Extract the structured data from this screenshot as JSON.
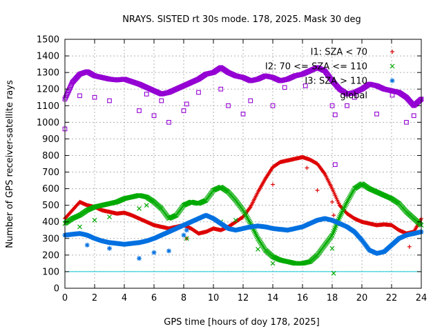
{
  "chart_data": {
    "type": "scatter",
    "title": "NRAYS. SISTED rt 30s mode. 178, 2025. Mask 30 deg",
    "xlabel": "GPS time [hours of doy 178, 2025]",
    "ylabel": "Number of GPS receiver-satellite rays",
    "xlim": [
      0,
      24
    ],
    "ylim": [
      0,
      1500
    ],
    "xticks": [
      "0",
      "2",
      "4",
      "6",
      "8",
      "10",
      "12",
      "14",
      "16",
      "18",
      "20",
      "22",
      "24"
    ],
    "yticks": [
      "0",
      "100",
      "200",
      "300",
      "400",
      "500",
      "600",
      "700",
      "800",
      "900",
      "1000",
      "1100",
      "1200",
      "1300",
      "1400",
      "1500"
    ],
    "grid": true,
    "legend_position": "top-right",
    "threshold_line": {
      "y": 100,
      "color": "#00c8d0"
    },
    "series": [
      {
        "name": "I1: SZA < 70",
        "color": "#dd0000",
        "marker": "+",
        "x": [
          0,
          0.5,
          1,
          1.5,
          2,
          2.5,
          3,
          3.5,
          4,
          4.5,
          5,
          5.5,
          6,
          6.5,
          7,
          7.5,
          8,
          8.5,
          9,
          9.5,
          10,
          10.5,
          11,
          11.5,
          12,
          12.5,
          13,
          13.5,
          14,
          14.5,
          15,
          15.5,
          16,
          16.5,
          17,
          17.5,
          18,
          18.5,
          19,
          19.5,
          20,
          20.5,
          21,
          21.5,
          22,
          22.5,
          23,
          23.5,
          24
        ],
        "y": [
          420,
          470,
          520,
          500,
          490,
          470,
          460,
          450,
          455,
          440,
          420,
          400,
          380,
          370,
          360,
          370,
          380,
          360,
          330,
          340,
          360,
          350,
          370,
          400,
          430,
          490,
          580,
          660,
          730,
          760,
          770,
          780,
          790,
          775,
          750,
          690,
          600,
          500,
          450,
          420,
          400,
          390,
          380,
          385,
          380,
          350,
          330,
          340,
          420
        ],
        "outliers_x": [
          8.2,
          14,
          16.3,
          17,
          18,
          18.1,
          23.2
        ],
        "outliers_y": [
          300,
          625,
          725,
          590,
          520,
          440,
          250
        ]
      },
      {
        "name": "I2: 70 <= SZA <= 110",
        "color": "#00aa00",
        "marker": "x",
        "x": [
          0,
          0.5,
          1,
          1.5,
          2,
          2.5,
          3,
          3.5,
          4,
          4.5,
          5,
          5.5,
          6,
          6.5,
          7,
          7.5,
          8,
          8.5,
          9,
          9.5,
          10,
          10.5,
          11,
          11.5,
          12,
          12.5,
          13,
          13.5,
          14,
          14.5,
          15,
          15.5,
          16,
          16.5,
          17,
          17.5,
          18,
          18.5,
          19,
          19.5,
          20,
          20.5,
          21,
          21.5,
          22,
          22.5,
          23,
          23.5,
          24
        ],
        "y": [
          390,
          420,
          440,
          470,
          490,
          500,
          510,
          520,
          540,
          550,
          560,
          550,
          520,
          480,
          420,
          440,
          500,
          520,
          510,
          530,
          590,
          610,
          580,
          530,
          470,
          390,
          300,
          230,
          190,
          170,
          160,
          150,
          150,
          160,
          200,
          260,
          320,
          430,
          520,
          600,
          630,
          600,
          580,
          560,
          540,
          510,
          460,
          420,
          380
        ],
        "outliers_x": [
          1,
          2,
          3,
          5,
          5.5,
          8.2,
          10.5,
          11.5,
          13,
          14,
          18,
          18.1
        ],
        "outliers_y": [
          370,
          410,
          430,
          480,
          500,
          300,
          400,
          410,
          235,
          150,
          240,
          90
        ]
      },
      {
        "name": "I3: SZA > 110",
        "color": "#0070e0",
        "marker": "*",
        "x": [
          0,
          0.5,
          1,
          1.5,
          2,
          2.5,
          3,
          3.5,
          4,
          4.5,
          5,
          5.5,
          6,
          6.5,
          7,
          7.5,
          8,
          8.5,
          9,
          9.5,
          10,
          10.5,
          11,
          11.5,
          12,
          12.5,
          13,
          13.5,
          14,
          14.5,
          15,
          15.5,
          16,
          16.5,
          17,
          17.5,
          18,
          18.5,
          19,
          19.5,
          20,
          20.5,
          21,
          21.5,
          22,
          22.5,
          23,
          23.5,
          24
        ],
        "y": [
          320,
          325,
          330,
          320,
          300,
          285,
          275,
          270,
          265,
          270,
          275,
          285,
          300,
          320,
          340,
          360,
          380,
          400,
          420,
          440,
          420,
          390,
          360,
          350,
          360,
          370,
          375,
          370,
          360,
          355,
          350,
          360,
          370,
          390,
          410,
          420,
          410,
          390,
          370,
          340,
          290,
          230,
          210,
          220,
          260,
          300,
          320,
          330,
          340
        ],
        "outliers_x": [
          1.5,
          3,
          5,
          6,
          7,
          8,
          8.2
        ],
        "outliers_y": [
          260,
          240,
          180,
          215,
          225,
          320,
          350
        ]
      },
      {
        "name": "global",
        "color": "#9400d3",
        "marker": "square",
        "x": [
          0,
          0.5,
          1,
          1.5,
          2,
          2.5,
          3,
          3.5,
          4,
          4.5,
          5,
          5.5,
          6,
          6.5,
          7,
          7.5,
          8,
          8.5,
          9,
          9.5,
          10,
          10.5,
          11,
          11.5,
          12,
          12.5,
          13,
          13.5,
          14,
          14.5,
          15,
          15.5,
          16,
          16.5,
          17,
          17.5,
          18,
          18.5,
          19,
          19.5,
          20,
          20.5,
          21,
          21.5,
          22,
          22.5,
          23,
          23.5,
          24
        ],
        "y": [
          1140,
          1240,
          1290,
          1305,
          1280,
          1270,
          1260,
          1255,
          1260,
          1245,
          1230,
          1210,
          1190,
          1170,
          1180,
          1200,
          1220,
          1240,
          1260,
          1290,
          1300,
          1330,
          1300,
          1280,
          1270,
          1250,
          1260,
          1280,
          1270,
          1250,
          1260,
          1280,
          1290,
          1310,
          1330,
          1310,
          1250,
          1200,
          1170,
          1180,
          1200,
          1230,
          1220,
          1200,
          1190,
          1180,
          1150,
          1100,
          1140
        ],
        "outliers_x": [
          0,
          1,
          2,
          3,
          5,
          5.5,
          6,
          6.5,
          7,
          8,
          8.2,
          9,
          10.5,
          11,
          12,
          12.5,
          14,
          14.8,
          16.2,
          18,
          18.2,
          19,
          19.5,
          21,
          23,
          23.5
        ],
        "outliers_y": [
          960,
          1160,
          1150,
          1130,
          1070,
          1170,
          1040,
          1130,
          1000,
          1070,
          1110,
          1180,
          1200,
          1100,
          1050,
          1130,
          1100,
          1210,
          1220,
          1100,
          1045,
          1100,
          1150,
          1050,
          1000,
          1040
        ],
        "cluster_x": [
          18.2
        ],
        "cluster_y": [
          745
        ]
      }
    ]
  }
}
